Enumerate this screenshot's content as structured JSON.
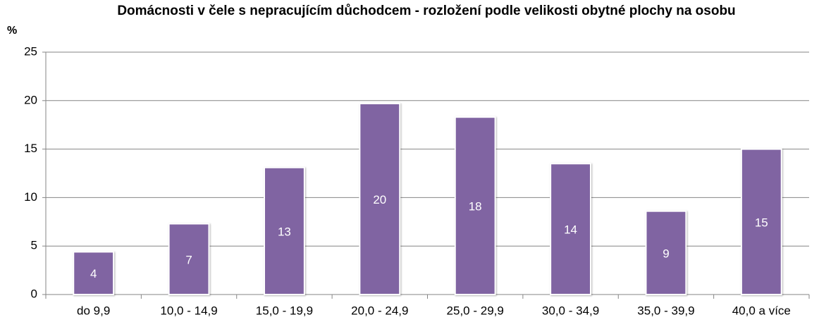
{
  "chart_data": {
    "type": "bar",
    "title": "Domácnosti  v čele s nepracujícím důchodcem - rozložení podle velikosti obytné plochy na osobu",
    "y_label": "%",
    "categories": [
      "do 9,9",
      "10,0 - 14,9",
      "15,0 - 19,9",
      "20,0 - 24,9",
      "25,0 - 29,9",
      "30,0 - 34,9",
      "35,0 - 39,9",
      "40,0 a více"
    ],
    "values": [
      4.4,
      7.3,
      13.1,
      19.7,
      18.3,
      13.5,
      8.6,
      15.0
    ],
    "value_labels": [
      "4",
      "7",
      "13",
      "20",
      "18",
      "14",
      "9",
      "15"
    ],
    "color": "#8064a2",
    "ylim": [
      0,
      25
    ],
    "yticks": [
      0,
      5,
      10,
      15,
      20,
      25
    ],
    "grid": true
  }
}
